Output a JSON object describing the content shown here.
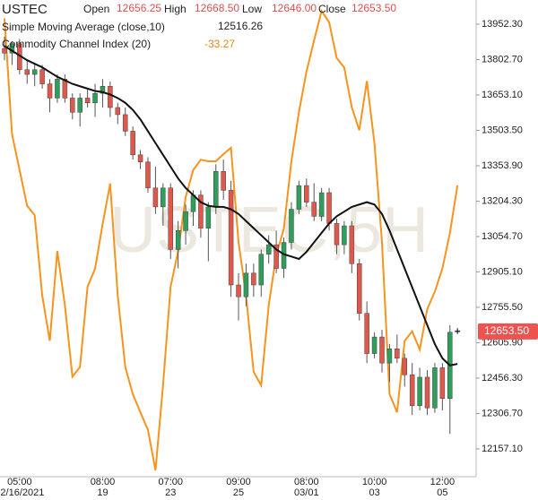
{
  "chart_data": {
    "type": "candlestick",
    "title": "USTEC",
    "watermark": "USTEC,5H",
    "header": [
      {
        "label": "Open",
        "value": "12656.25"
      },
      {
        "label": "High",
        "value": "12668.50"
      },
      {
        "label": "Low",
        "value": "12646.00"
      },
      {
        "label": "Close",
        "value": "12653.50"
      }
    ],
    "categories": [
      null,
      null,
      "05:00",
      null,
      null,
      null,
      null,
      null,
      null,
      null,
      null,
      null,
      null,
      "08:00",
      null,
      null,
      null,
      null,
      null,
      null,
      null,
      null,
      "07:00",
      null,
      null,
      null,
      null,
      null,
      null,
      null,
      null,
      "09:00",
      null,
      null,
      null,
      null,
      null,
      null,
      null,
      null,
      "08:00",
      null,
      null,
      null,
      null,
      null,
      null,
      null,
      null,
      "10:00",
      null,
      null,
      null,
      null,
      null,
      null,
      null,
      null,
      "12:00",
      null,
      null
    ],
    "dates": [
      null,
      null,
      "02/16/2021",
      null,
      null,
      null,
      null,
      null,
      null,
      null,
      null,
      null,
      null,
      "19",
      null,
      null,
      null,
      null,
      null,
      null,
      null,
      null,
      "23",
      null,
      null,
      null,
      null,
      null,
      null,
      null,
      null,
      "25",
      null,
      null,
      null,
      null,
      null,
      null,
      null,
      null,
      "03/01",
      null,
      null,
      null,
      null,
      null,
      null,
      null,
      null,
      "03",
      null,
      null,
      null,
      null,
      null,
      null,
      null,
      null,
      "05",
      null,
      null
    ],
    "series": [
      {
        "name": "USTEC",
        "up_color": "#2e9e5b",
        "down_color": "#e0584b",
        "last_price_label": "12653.50",
        "open": [
          13850,
          13830,
          13870,
          13760,
          13740,
          13760,
          13700,
          13640,
          13720,
          13640,
          13580,
          13640,
          13620,
          13660,
          13690,
          13600,
          13570,
          13500,
          13400,
          13370,
          13260,
          13180,
          13260,
          13000,
          13080,
          13160,
          13230,
          13090,
          13180,
          13330,
          13250,
          12850,
          12800,
          12900,
          12850,
          12980,
          13020,
          12920,
          13030,
          13170,
          13270,
          13200,
          13140,
          13240,
          13110,
          13020,
          13100,
          12940,
          12730,
          12560,
          12630,
          12520,
          12580,
          12540,
          12470,
          12340,
          12460,
          12330,
          12500,
          12370,
          12656.25
        ],
        "high": [
          13900,
          13880,
          13890,
          13800,
          13790,
          13780,
          13720,
          13740,
          13740,
          13660,
          13660,
          13680,
          13700,
          13720,
          13710,
          13620,
          13600,
          13520,
          13420,
          13390,
          13350,
          13280,
          13280,
          13120,
          13190,
          13250,
          13250,
          13200,
          13360,
          13380,
          13290,
          12900,
          12940,
          12940,
          13000,
          13060,
          13080,
          13050,
          13200,
          13290,
          13300,
          13280,
          13260,
          13260,
          13130,
          13120,
          13120,
          12960,
          12780,
          12650,
          12660,
          12600,
          12640,
          12560,
          12520,
          12500,
          12490,
          12520,
          12520,
          12680,
          12668.5
        ],
        "low": [
          13800,
          13780,
          13740,
          13700,
          13690,
          13680,
          13580,
          13620,
          13620,
          13550,
          13520,
          13600,
          13560,
          13600,
          13560,
          13530,
          13480,
          13380,
          13340,
          13240,
          13150,
          13100,
          12960,
          12920,
          13020,
          13100,
          13050,
          12950,
          13150,
          13210,
          12800,
          12700,
          12760,
          12800,
          12800,
          12940,
          12900,
          12880,
          13000,
          13150,
          13180,
          13120,
          13120,
          13080,
          12980,
          12980,
          12900,
          12700,
          12520,
          12540,
          12480,
          12440,
          12520,
          12420,
          12300,
          12320,
          12300,
          12310,
          12320,
          12220,
          12646
        ],
        "close": [
          13830,
          13870,
          13760,
          13740,
          13760,
          13700,
          13640,
          13720,
          13640,
          13580,
          13640,
          13620,
          13660,
          13690,
          13600,
          13570,
          13500,
          13400,
          13370,
          13260,
          13180,
          13260,
          13000,
          13080,
          13160,
          13230,
          13090,
          13180,
          13330,
          13250,
          12850,
          12800,
          12900,
          12850,
          12980,
          13020,
          12920,
          13030,
          13170,
          13270,
          13200,
          13140,
          13240,
          13110,
          13020,
          13100,
          12940,
          12730,
          12560,
          12630,
          12520,
          12580,
          12540,
          12470,
          12340,
          12460,
          12330,
          12500,
          12370,
          12650,
          12653.5
        ]
      }
    ],
    "indicators": [
      {
        "name": "Simple Moving Average (close,10)",
        "color": "#111111",
        "values": [
          13860,
          13840,
          13820,
          13800,
          13785,
          13770,
          13750,
          13730,
          13715,
          13700,
          13690,
          13680,
          13670,
          13665,
          13655,
          13640,
          13620,
          13590,
          13550,
          13500,
          13450,
          13400,
          13350,
          13300,
          13260,
          13230,
          13200,
          13185,
          13180,
          13180,
          13170,
          13150,
          13120,
          13090,
          13060,
          13030,
          13000,
          12980,
          12970,
          12960,
          12990,
          13030,
          13070,
          13110,
          13140,
          13160,
          13180,
          13190,
          13200,
          13190,
          13150,
          13080,
          13000,
          12920,
          12840,
          12760,
          12680,
          12600,
          12540,
          12510,
          12516.26
        ]
      },
      {
        "name": "Commodity Channel Index (20)",
        "color": "#f7931e",
        "axis": "y2",
        "values": [
          177,
          31,
          -14,
          -59,
          -71,
          -172,
          -229,
          -116,
          -184,
          -274,
          -262,
          -161,
          -138,
          -82,
          -31,
          -172,
          -262,
          -296,
          -319,
          -341,
          -392,
          -285,
          -161,
          -116,
          -48,
          -14,
          -1,
          -3,
          -3,
          6,
          14,
          -105,
          -172,
          -268,
          -285,
          -184,
          -121,
          -88,
          -3,
          59,
          110,
          149,
          186,
          172,
          127,
          115,
          65,
          36,
          98,
          20,
          -105,
          -296,
          -319,
          -229,
          -217,
          -240,
          -189,
          -167,
          -138,
          -93,
          -33.27
        ]
      }
    ],
    "ylim": [
      12039.4,
      14054.6
    ],
    "yticks": [
      {
        "value": 13952.3,
        "label": "13952.30"
      },
      {
        "value": 13802.7,
        "label": "13802.70"
      },
      {
        "value": 13653.1,
        "label": "13653.10"
      },
      {
        "value": 13503.5,
        "label": "13503.50"
      },
      {
        "value": 13353.9,
        "label": "13353.90"
      },
      {
        "value": 13204.3,
        "label": "13204.30"
      },
      {
        "value": 13054.7,
        "label": "13054.70"
      },
      {
        "value": 12905.1,
        "label": "12905.10"
      },
      {
        "value": 12755.5,
        "label": "12755.50"
      },
      {
        "value": 12605.9,
        "label": "12605.90"
      },
      {
        "value": 12456.3,
        "label": "12456.30"
      },
      {
        "value": 12306.7,
        "label": "12306.70"
      },
      {
        "value": 12157.1,
        "label": "12157.10"
      }
    ],
    "y2lim": [
      -400,
      200
    ]
  }
}
